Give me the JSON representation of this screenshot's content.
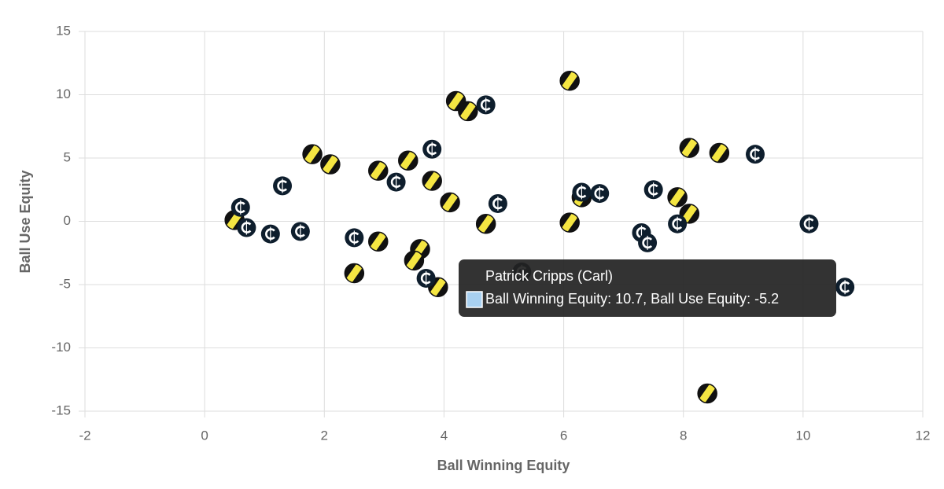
{
  "chart_data": {
    "type": "scatter",
    "x_label": "Ball Winning Equity",
    "y_label": "Ball Use Equity",
    "xlim": [
      -2,
      12
    ],
    "xticks": [
      -2,
      0,
      2,
      4,
      6,
      8,
      10,
      12
    ],
    "ylim": [
      -15,
      15
    ],
    "yticks": [
      -15,
      -10,
      -5,
      0,
      5,
      10,
      15
    ],
    "grid": true,
    "series": [
      {
        "color": "#f5e642",
        "accent": "#111111",
        "x": [
          0.5,
          1.8,
          2.1,
          2.9,
          3.4,
          3.8,
          4.1,
          4.2,
          4.4,
          4.7,
          2.5,
          2.9,
          3.6,
          3.5,
          3.9,
          6.1,
          6.1,
          6.3,
          7.9,
          8.1,
          8.1,
          8.6,
          8.4
        ],
        "y": [
          0.1,
          5.3,
          4.5,
          4.0,
          4.8,
          3.2,
          1.5,
          9.5,
          8.7,
          -0.2,
          -4.1,
          -1.6,
          -2.2,
          -3.1,
          -5.2,
          11.1,
          -0.1,
          1.9,
          1.9,
          0.6,
          5.8,
          5.4,
          -13.6
        ]
      },
      {
        "color": "#0e1e2d",
        "accent": "#ffffff",
        "x": [
          0.6,
          0.7,
          1.1,
          1.3,
          1.6,
          2.5,
          3.2,
          3.8,
          3.7,
          4.7,
          4.9,
          5.3,
          6.3,
          6.6,
          7.3,
          7.4,
          7.5,
          7.9,
          9.2,
          10.1,
          10.7
        ],
        "y": [
          1.1,
          -0.5,
          -1.0,
          2.8,
          -0.8,
          -1.3,
          3.1,
          5.7,
          -4.5,
          9.2,
          1.4,
          -4.0,
          2.3,
          2.2,
          -0.9,
          -1.7,
          2.5,
          -0.2,
          5.3,
          -0.2,
          -5.2
        ]
      }
    ],
    "tooltip": {
      "title": "Patrick Cripps (Carl)",
      "body": "Ball Winning Equity: 10.7, Ball Use Equity: -5.2"
    }
  }
}
